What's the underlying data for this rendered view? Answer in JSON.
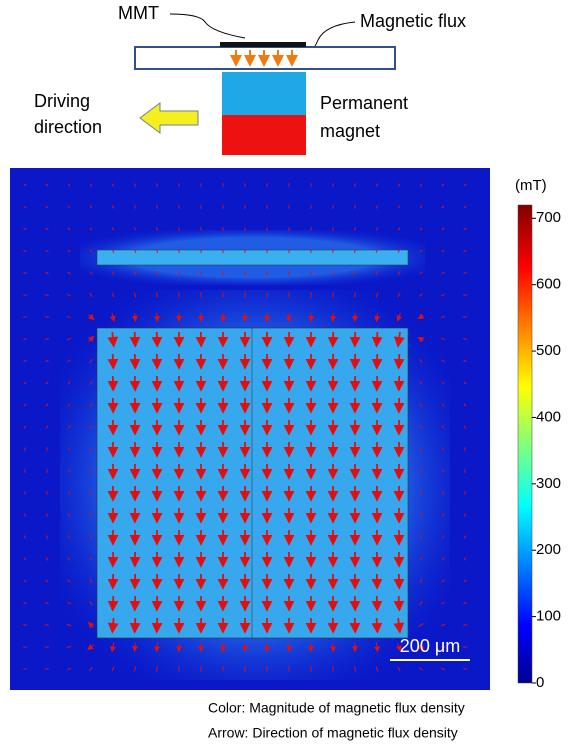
{
  "schematic": {
    "labels": [
      "MMT",
      "Magnetic flux",
      "Driving",
      "direction",
      "Permanent",
      "magnet"
    ]
  },
  "colorbar": {
    "unit": "(mT)",
    "lim": [
      0,
      720
    ],
    "ticks": [
      0,
      100,
      200,
      300,
      400,
      500,
      600,
      700
    ]
  },
  "scale_bar": "200 μm",
  "caption": [
    "Color: Magnitude of magnetic flux density",
    "Arrow: Direction of magnetic flux density"
  ]
}
